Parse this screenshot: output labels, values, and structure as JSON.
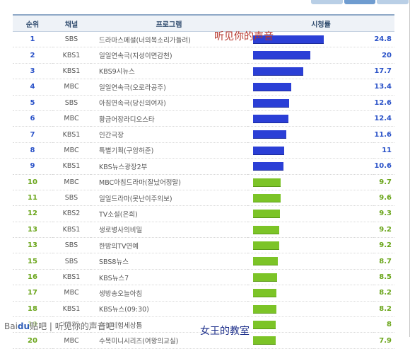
{
  "header": {
    "rank": "순위",
    "channel": "채널",
    "program": "프로그램",
    "rating": "시청률"
  },
  "rows": [
    {
      "rank": "1",
      "channel": "SBS",
      "program": "드라마스페셜(너의목소리가들려)",
      "value": "24.8",
      "tier": "top",
      "pct": 24.8
    },
    {
      "rank": "2",
      "channel": "KBS1",
      "program": "일일연속극(지성이면감천)",
      "value": "20",
      "tier": "top",
      "pct": 20
    },
    {
      "rank": "3",
      "channel": "KBS1",
      "program": "KBS9시뉴스",
      "value": "17.7",
      "tier": "top",
      "pct": 17.7
    },
    {
      "rank": "4",
      "channel": "MBC",
      "program": "일일연속극(오로라공주)",
      "value": "13.4",
      "tier": "top",
      "pct": 13.4
    },
    {
      "rank": "5",
      "channel": "SBS",
      "program": "아침연속극(당신의여자)",
      "value": "12.6",
      "tier": "top",
      "pct": 12.6
    },
    {
      "rank": "6",
      "channel": "MBC",
      "program": "황금어장라디오스타",
      "value": "12.4",
      "tier": "top",
      "pct": 12.4
    },
    {
      "rank": "7",
      "channel": "KBS1",
      "program": "인간극장",
      "value": "11.6",
      "tier": "top",
      "pct": 11.6
    },
    {
      "rank": "8",
      "channel": "MBC",
      "program": "특별기획(구암허준)",
      "value": "11",
      "tier": "top",
      "pct": 11
    },
    {
      "rank": "9",
      "channel": "KBS1",
      "program": "KBS뉴스광장2부",
      "value": "10.6",
      "tier": "top",
      "pct": 10.6
    },
    {
      "rank": "10",
      "channel": "MBC",
      "program": "MBC아침드라마(잘났어정말)",
      "value": "9.7",
      "tier": "low",
      "pct": 9.7
    },
    {
      "rank": "11",
      "channel": "SBS",
      "program": "일일드라마(못난이주의보)",
      "value": "9.6",
      "tier": "low",
      "pct": 9.6
    },
    {
      "rank": "12",
      "channel": "KBS2",
      "program": "TV소설(은희)",
      "value": "9.3",
      "tier": "low",
      "pct": 9.3
    },
    {
      "rank": "13",
      "channel": "KBS1",
      "program": "생로병사의비밀",
      "value": "9.2",
      "tier": "low",
      "pct": 9.2
    },
    {
      "rank": "13",
      "channel": "SBS",
      "program": "한밤의TV연예",
      "value": "9.2",
      "tier": "low",
      "pct": 9.2
    },
    {
      "rank": "15",
      "channel": "SBS",
      "program": "SBS8뉴스",
      "value": "8.7",
      "tier": "low",
      "pct": 8.7
    },
    {
      "rank": "16",
      "channel": "KBS1",
      "program": "KBS뉴스7",
      "value": "8.5",
      "tier": "low",
      "pct": 8.5
    },
    {
      "rank": "17",
      "channel": "MBC",
      "program": "생방송오늘아침",
      "value": "8.2",
      "tier": "low",
      "pct": 8.2
    },
    {
      "rank": "18",
      "channel": "KBS1",
      "program": "KBS뉴스(09:30)",
      "value": "8.2",
      "tier": "low",
      "pct": 8.2
    },
    {
      "rank": "19",
      "channel": "KBS1",
      "program": "리얼체험세상틈",
      "value": "8",
      "tier": "low",
      "pct": 8
    },
    {
      "rank": "20",
      "channel": "MBC",
      "program": "수목미니시리즈(여왕의교실)",
      "value": "7.9",
      "tier": "low",
      "pct": 7.9
    }
  ],
  "overlays": {
    "top": "听见你的声音",
    "bottom": "女王的教室"
  },
  "watermark": {
    "brand": "Bai",
    "paw": "du",
    "text": "贴吧 | 听见你的声音吧"
  },
  "colors": {
    "top": "#2b3fd6",
    "low": "#7cc427"
  }
}
